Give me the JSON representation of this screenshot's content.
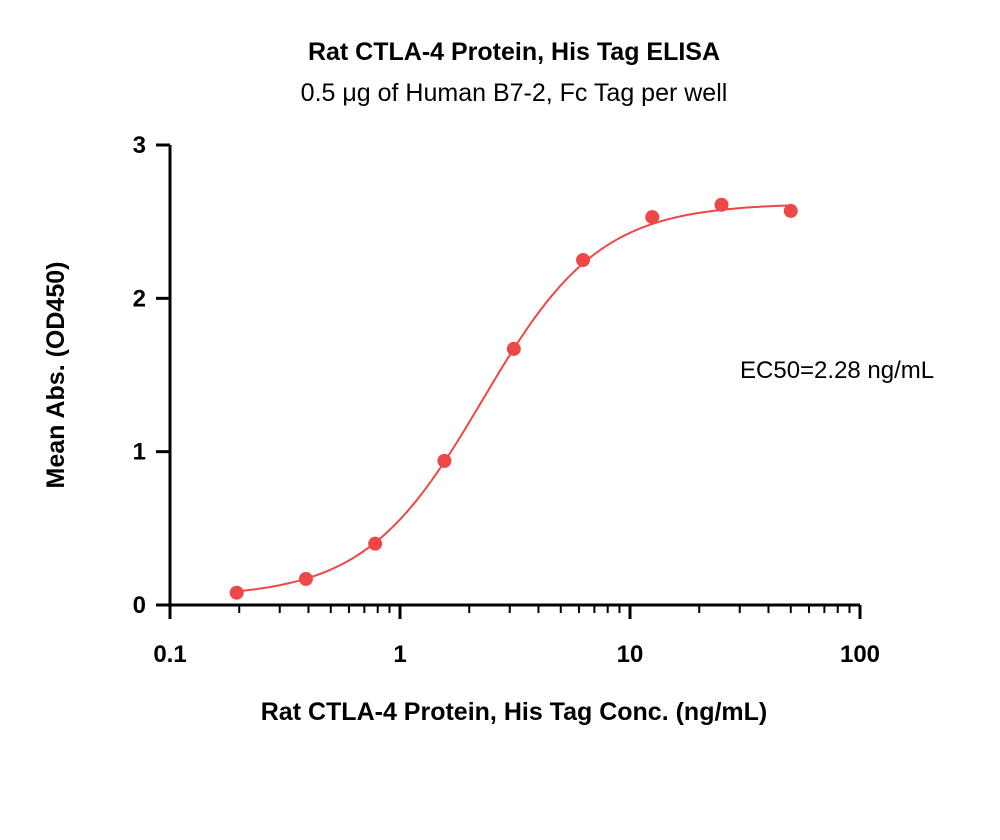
{
  "chart_data": {
    "type": "scatter",
    "title": "Rat CTLA-4 Protein, His Tag ELISA",
    "subtitle": "0.5 μg of Human B7-2, Fc Tag per well",
    "xlabel": "Rat CTLA-4 Protein, His Tag Conc. (ng/mL)",
    "ylabel": "Mean Abs. (OD450)",
    "x_scale": "log",
    "xlim": [
      0.1,
      100
    ],
    "ylim": [
      0,
      3
    ],
    "x_ticks": [
      "0.1",
      "1",
      "10",
      "100"
    ],
    "y_ticks": [
      "0",
      "1",
      "2",
      "3"
    ],
    "x": [
      0.195,
      0.39,
      0.78,
      1.56,
      3.125,
      6.25,
      12.5,
      25,
      50
    ],
    "y": [
      0.08,
      0.17,
      0.4,
      0.94,
      1.67,
      2.25,
      2.53,
      2.61,
      2.57
    ],
    "fit": {
      "bottom": 0.05,
      "top": 2.62,
      "ec50": 2.28,
      "hill": 1.7
    },
    "annotation": "EC50=2.28 ng/mL",
    "colors": {
      "points": "#ee4747",
      "curve": "#ee4747",
      "axis": "#000000"
    },
    "grid": false,
    "legend": "none"
  }
}
